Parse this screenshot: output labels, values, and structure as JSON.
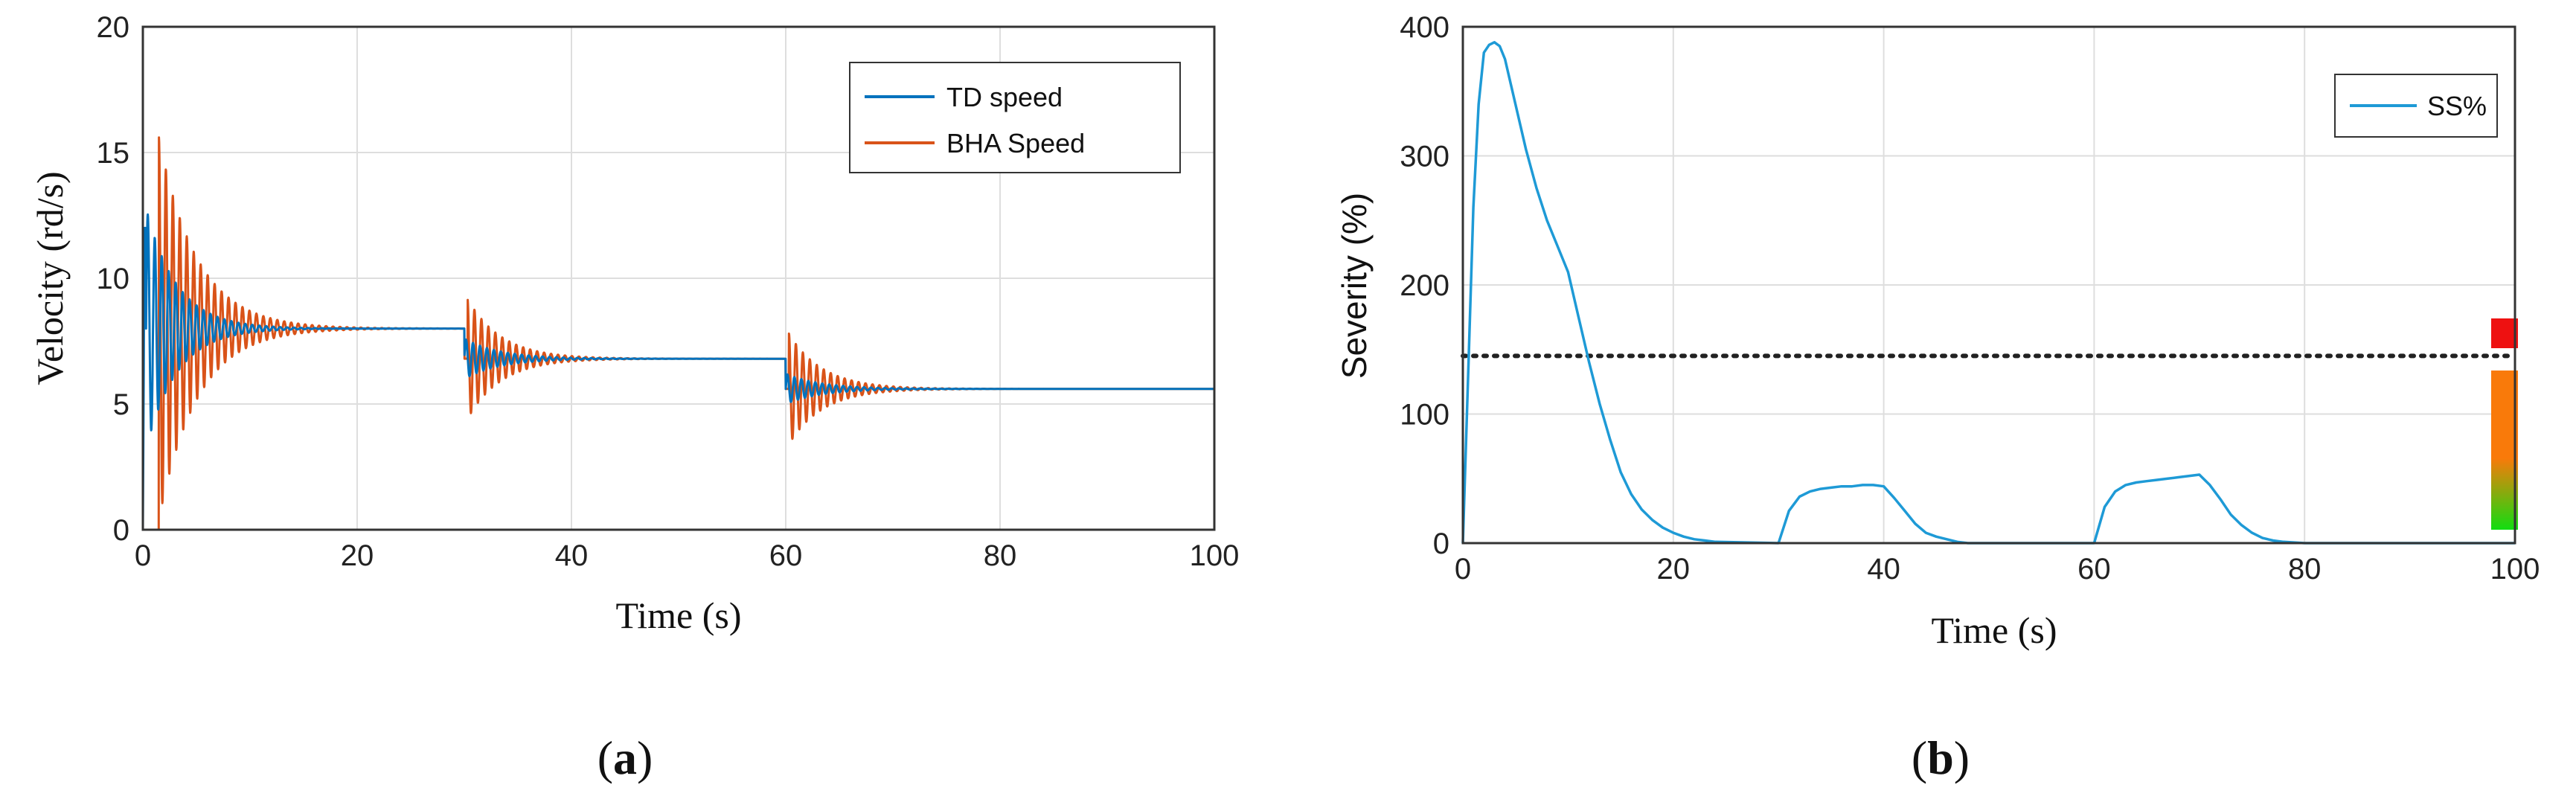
{
  "chart_data": [
    {
      "type": "line",
      "panel": "a",
      "xlabel": "Time (s)",
      "ylabel": "Velocity (rd/s)",
      "xlim": [
        0,
        100
      ],
      "ylim": [
        0,
        20
      ],
      "xticks": [
        "0",
        "20",
        "40",
        "60",
        "80",
        "100"
      ],
      "yticks": [
        "0",
        "5",
        "10",
        "15",
        "20"
      ],
      "grid": true,
      "legend_position": "top-right",
      "colors": {
        "td": "#0072BD",
        "bha": "#D95319"
      },
      "series": [
        {
          "name": "TD speed",
          "description": "Top-drive speed; oscillates after start, then settles at each set-point step.",
          "levels": [
            {
              "t_start": 0,
              "t_end": 30,
              "value": 8.0
            },
            {
              "t_start": 30,
              "t_end": 60,
              "value": 6.8
            },
            {
              "t_start": 60,
              "t_end": 100,
              "value": 5.6
            }
          ],
          "transients": [
            {
              "t0": 0.3,
              "amplitude": 4.8,
              "decay": 0.35,
              "period": 0.65
            },
            {
              "t0": 30,
              "amplitude": 0.8,
              "decay": 0.3,
              "period": 0.65
            },
            {
              "t0": 60,
              "amplitude": 0.6,
              "decay": 0.3,
              "period": 0.65
            }
          ]
        },
        {
          "name": "BHA Speed",
          "description": "Bottom-hole-assembly speed; large stick-slip oscillation after start, smaller transients at each step.",
          "levels": [
            {
              "t_start": 0,
              "t_end": 30,
              "value": 8.0
            },
            {
              "t_start": 30,
              "t_end": 60,
              "value": 6.8
            },
            {
              "t_start": 60,
              "t_end": 100,
              "value": 5.6
            }
          ],
          "transients": [
            {
              "t0": 1.5,
              "amplitude": 7.6,
              "decay": 0.28,
              "period": 0.65
            },
            {
              "t0": 30.3,
              "amplitude": 2.4,
              "decay": 0.32,
              "period": 0.65
            },
            {
              "t0": 60.3,
              "amplitude": 2.2,
              "decay": 0.32,
              "period": 0.65
            }
          ]
        }
      ],
      "panel_label": "a"
    },
    {
      "type": "line",
      "panel": "b",
      "xlabel": "Time (s)",
      "ylabel": "Severity (%)",
      "xlim": [
        0,
        100
      ],
      "ylim": [
        0,
        400
      ],
      "xticks": [
        "0",
        "20",
        "40",
        "60",
        "80",
        "100"
      ],
      "yticks": [
        "0",
        "100",
        "200",
        "300",
        "400"
      ],
      "grid": true,
      "legend_position": "top-right",
      "threshold": 145,
      "colors": {
        "ss": "#1E9AD6",
        "threshold": "#222222"
      },
      "series": [
        {
          "name": "SS%",
          "x": [
            0,
            0.5,
            1,
            1.5,
            2,
            2.5,
            3,
            3.5,
            4,
            5,
            6,
            7,
            8,
            9,
            10,
            11,
            12,
            13,
            14,
            15,
            16,
            17,
            18,
            19,
            20,
            21,
            22,
            23,
            24,
            30,
            31,
            32,
            33,
            34,
            35,
            36,
            37,
            38,
            39,
            40,
            41,
            42,
            43,
            44,
            45,
            46,
            47,
            48,
            60,
            61,
            62,
            63,
            64,
            65,
            66,
            67,
            68,
            69,
            70,
            71,
            72,
            73,
            74,
            75,
            76,
            77,
            78,
            80,
            100
          ],
          "values": [
            0,
            130,
            260,
            340,
            380,
            386,
            388,
            385,
            375,
            340,
            305,
            275,
            250,
            230,
            210,
            175,
            140,
            108,
            80,
            55,
            38,
            26,
            18,
            12,
            8,
            5,
            3,
            2,
            1,
            0,
            25,
            36,
            40,
            42,
            43,
            44,
            44,
            45,
            45,
            44,
            35,
            25,
            15,
            8,
            5,
            3,
            1,
            0,
            0,
            28,
            40,
            45,
            47,
            48,
            49,
            50,
            51,
            52,
            53,
            45,
            34,
            22,
            14,
            8,
            4,
            2,
            1,
            0,
            0
          ]
        }
      ],
      "severity_scale": [
        {
          "level": "high",
          "color": "#EE1111"
        },
        {
          "level": "medium",
          "color": "#F97A0A"
        },
        {
          "level": "low",
          "color": "#11DD11"
        }
      ],
      "panel_label": "b"
    }
  ]
}
